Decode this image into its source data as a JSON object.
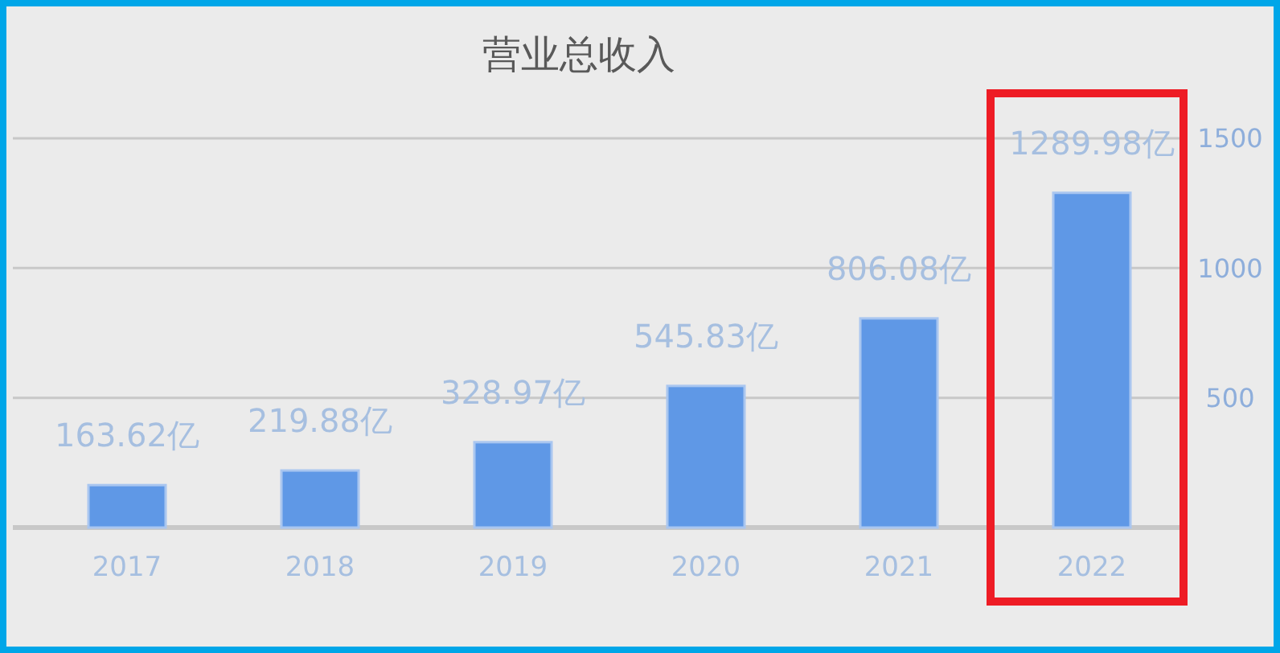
{
  "chart_data": {
    "type": "bar",
    "title": "营业总收入",
    "categories": [
      "2017",
      "2018",
      "2019",
      "2020",
      "2021",
      "2022"
    ],
    "values": [
      163.62,
      219.88,
      328.97,
      545.83,
      806.08,
      1289.98
    ],
    "value_labels": [
      "163.62亿",
      "219.88亿",
      "328.97亿",
      "545.83亿",
      "806.08亿",
      "1289.98亿"
    ],
    "color": "#5f98e6",
    "ylim": [
      0,
      1500
    ],
    "yticks": [
      {
        "value": 0,
        "label": null
      },
      500,
      1000,
      1500
    ],
    "grid": "y"
  }
}
